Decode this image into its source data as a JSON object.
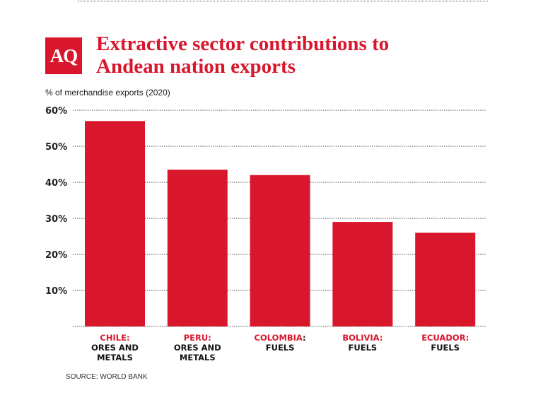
{
  "logo": "AQ",
  "chart_data": {
    "type": "bar",
    "title": "Extractive sector contributions to Andean nation exports",
    "ylabel": "% of merchandise exports (2020)",
    "source": "SOURCE: WORLD BANK",
    "categories": [
      {
        "country": "CHILE",
        "sep": ":",
        "sector": "ORES AND METALS"
      },
      {
        "country": "PERU",
        "sep": ":",
        "sector": "ORES AND METALS"
      },
      {
        "country": "COLOMBIA",
        "sep": ":",
        "sector": "FUELS"
      },
      {
        "country": "BOLIVIA",
        "sep": ":",
        "sector": "FUELS"
      },
      {
        "country": "ECUADOR",
        "sep": ":",
        "sector": "FUELS"
      }
    ],
    "values": [
      57,
      43.5,
      42,
      29,
      26
    ],
    "ylim": [
      0,
      60
    ],
    "yticks": [
      10,
      20,
      30,
      40,
      50,
      60
    ],
    "ytick_labels": [
      "10%",
      "20%",
      "30%",
      "40%",
      "50%",
      "60%"
    ],
    "grid": true,
    "bar_color": "#d8172d"
  }
}
